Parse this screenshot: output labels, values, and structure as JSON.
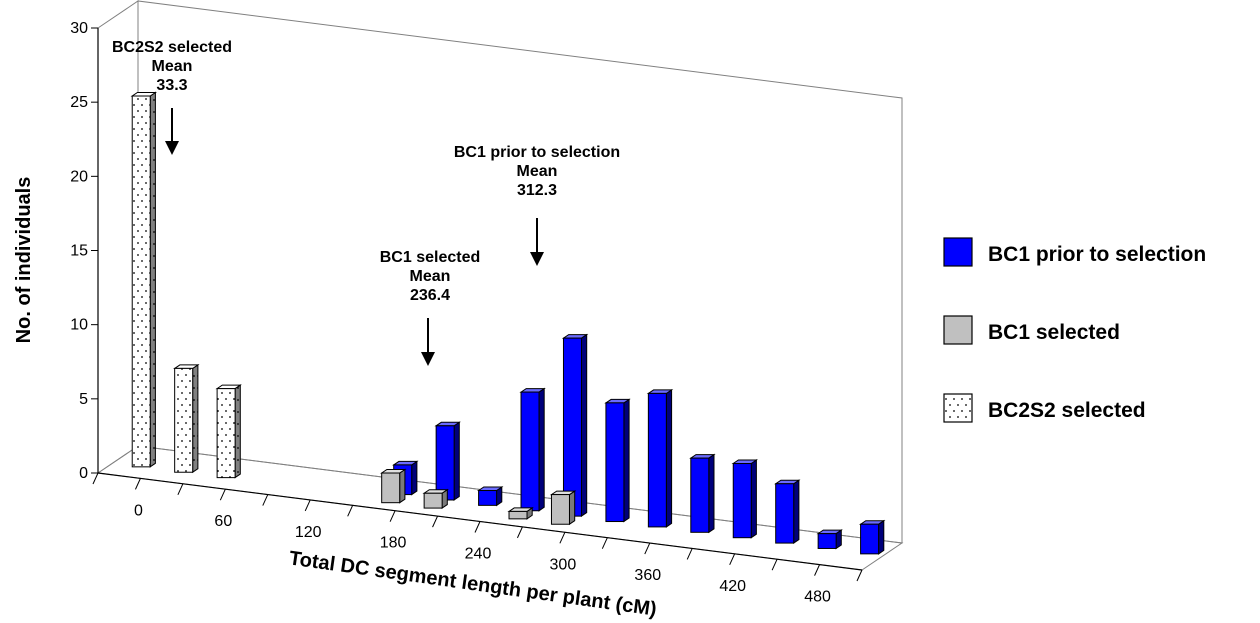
{
  "chart_data": {
    "type": "bar",
    "xlabel": "Total DC segment length per plant (cM)",
    "ylabel": "No. of individuals",
    "ylim": [
      0,
      30
    ],
    "y_ticks": [
      "0",
      "5",
      "10",
      "15",
      "20",
      "25",
      "30"
    ],
    "x_ticks": [
      "0",
      "60",
      "120",
      "180",
      "240",
      "300",
      "360",
      "420",
      "480"
    ],
    "x_bin_width": 30,
    "grid": false,
    "legend_position": "right",
    "series": [
      {
        "name": "BC2S2 selected",
        "color": "#ffffff",
        "pattern": "dots",
        "points": [
          {
            "x": 15,
            "y": 25
          },
          {
            "x": 45,
            "y": 7
          },
          {
            "x": 75,
            "y": 6
          }
        ]
      },
      {
        "name": "BC1 selected",
        "color": "#c0c0c0",
        "points": [
          {
            "x": 195,
            "y": 2
          },
          {
            "x": 225,
            "y": 1
          },
          {
            "x": 285,
            "y": 0.5
          },
          {
            "x": 315,
            "y": 2
          }
        ]
      },
      {
        "name": "BC1 prior to selection",
        "color": "#0000ff",
        "points": [
          {
            "x": 195,
            "y": 2
          },
          {
            "x": 225,
            "y": 5
          },
          {
            "x": 255,
            "y": 1
          },
          {
            "x": 285,
            "y": 8
          },
          {
            "x": 315,
            "y": 12
          },
          {
            "x": 345,
            "y": 8
          },
          {
            "x": 375,
            "y": 9
          },
          {
            "x": 405,
            "y": 5
          },
          {
            "x": 435,
            "y": 5
          },
          {
            "x": 465,
            "y": 4
          },
          {
            "x": 495,
            "y": 1
          },
          {
            "x": 525,
            "y": 2
          }
        ]
      }
    ],
    "annotations": [
      {
        "lines": [
          "BC2S2 selected",
          "Mean",
          "33.3"
        ],
        "x": 33.3
      },
      {
        "lines": [
          "BC1 selected",
          "Mean",
          "236.4"
        ],
        "x": 236.4
      },
      {
        "lines": [
          "BC1 prior to selection",
          "Mean",
          "312.3"
        ],
        "x": 312.3
      }
    ]
  }
}
